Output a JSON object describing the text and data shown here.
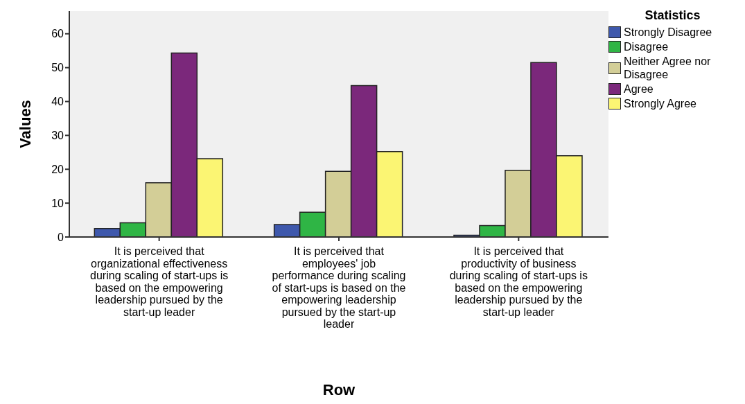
{
  "chart_data": {
    "type": "bar",
    "xlabel": "Row",
    "ylabel": "Values",
    "legend_title": "Statistics",
    "categories": [
      "It is perceived that organizational effectiveness during scaling of start-ups is based on the empowering leadership pursued by the start-up leader",
      "It is perceived that employees' job performance during scaling of start-ups is based on the empowering leadership pursued by the start-up leader",
      "It is perceived that productivity of business during scaling of start-ups is based on the empowering leadership pursued by the start-up leader"
    ],
    "series": [
      {
        "name": "Strongly Disagree",
        "color": "#3e58ac",
        "values": [
          2.5,
          3.7,
          0.5
        ]
      },
      {
        "name": "Disagree",
        "color": "#2fb545",
        "values": [
          4.2,
          7.3,
          3.4
        ]
      },
      {
        "name": "Neither Agree nor Disagree",
        "color": "#d3ce97",
        "values": [
          16.0,
          19.4,
          19.7
        ]
      },
      {
        "name": "Agree",
        "color": "#7b287b",
        "values": [
          54.3,
          44.7,
          51.5
        ]
      },
      {
        "name": "Strongly Agree",
        "color": "#fbf573",
        "values": [
          23.1,
          25.2,
          24.0
        ]
      }
    ],
    "ylim": [
      0,
      66.7
    ],
    "yticks": [
      0,
      10,
      20,
      30,
      40,
      50,
      60
    ],
    "grid": false,
    "legend": "top right"
  }
}
